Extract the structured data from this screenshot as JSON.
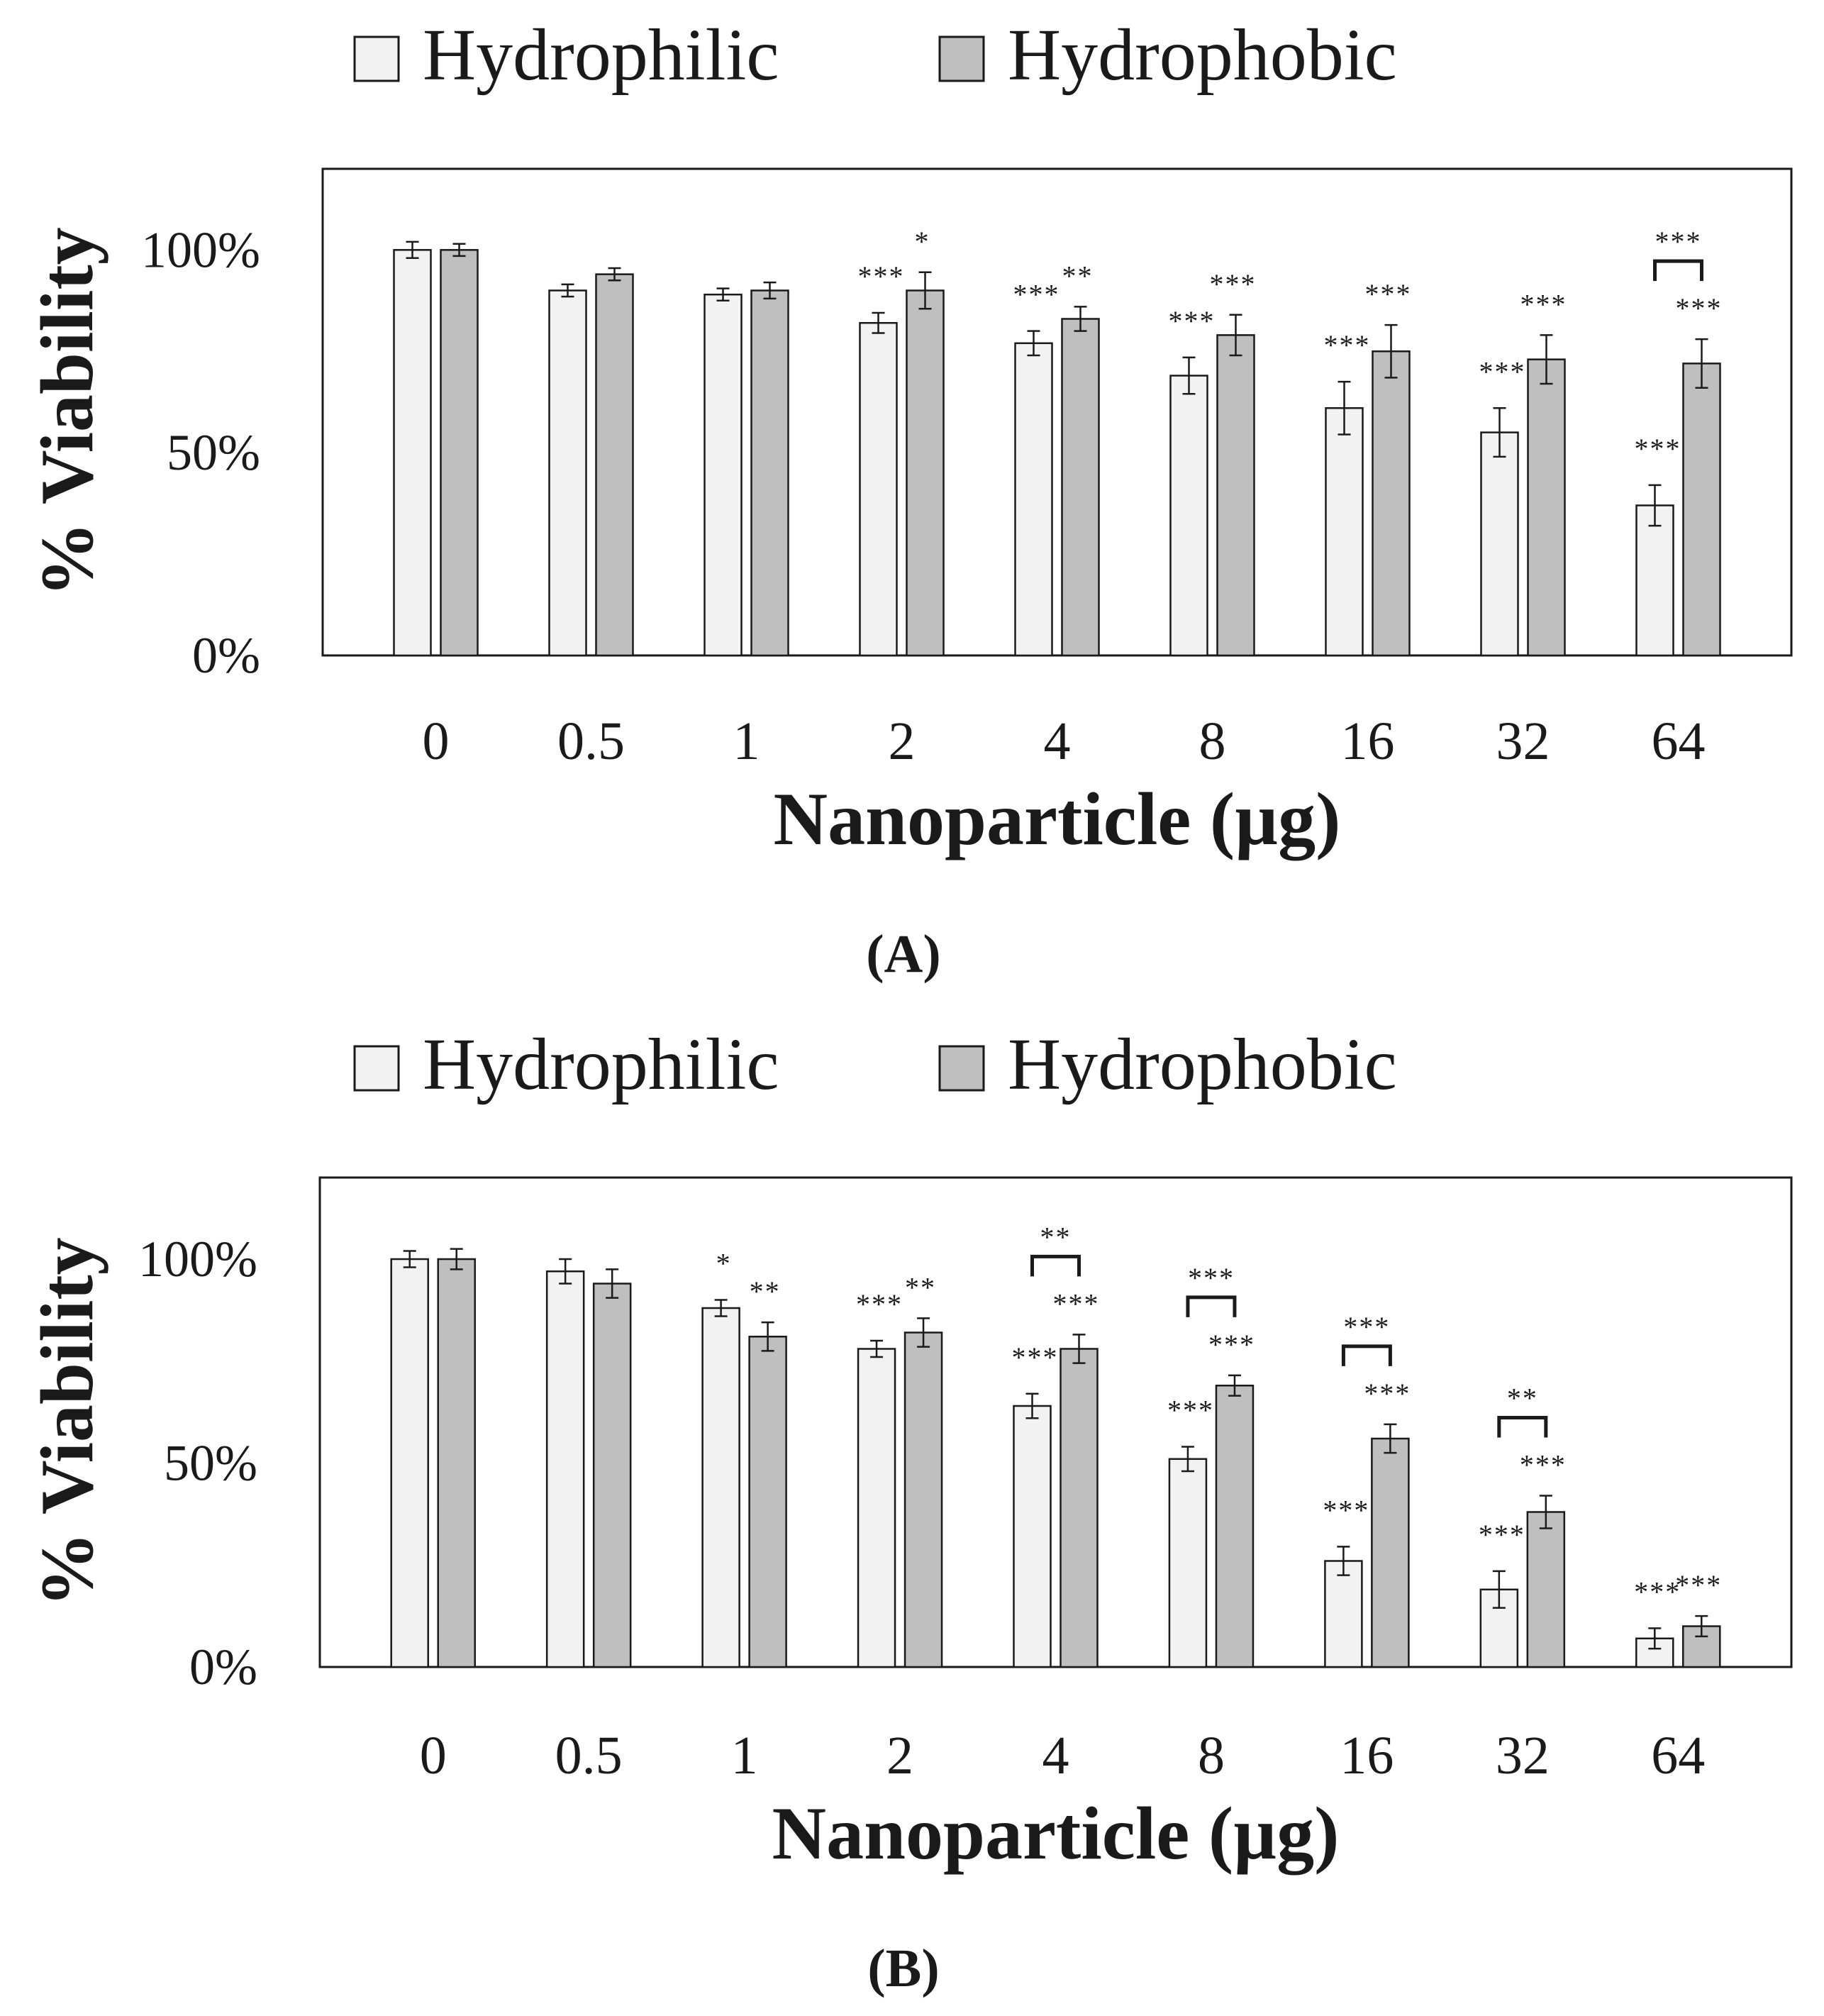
{
  "colors": {
    "hydrophilic": "#f2f2f2",
    "hydrophobic": "#bfbfbf",
    "stroke": "#1a1a1a",
    "background": "#ffffff"
  },
  "chart_data": [
    {
      "type": "bar",
      "panel_label": "A",
      "caption": "(A)",
      "legend": [
        "Hydrophilic",
        "Hydrophobic"
      ],
      "xlabel": "Nanoparticle (µg)",
      "ylabel": "% Viability",
      "yticks": [
        "0%",
        "50%",
        "100%"
      ],
      "ylim": [
        0,
        120
      ],
      "categories": [
        "0",
        "0.5",
        "1",
        "2",
        "4",
        "8",
        "16",
        "32",
        "64"
      ],
      "series": [
        {
          "name": "Hydrophilic",
          "values": [
            100,
            90,
            89,
            82,
            77,
            69,
            61,
            55,
            37
          ],
          "errors": [
            2,
            1.5,
            1.5,
            2.5,
            3,
            4.5,
            6.5,
            6,
            5
          ],
          "significance": [
            "",
            "",
            "",
            "***",
            "***",
            "***",
            "***",
            "***",
            "***"
          ]
        },
        {
          "name": "Hydrophobic",
          "values": [
            100,
            94,
            90,
            90,
            83,
            79,
            75,
            73,
            72
          ],
          "errors": [
            1.5,
            1.5,
            2,
            4.5,
            3,
            5,
            6.5,
            6,
            6
          ],
          "significance": [
            "",
            "",
            "",
            "*",
            "**",
            "***",
            "***",
            "***",
            "***"
          ]
        }
      ],
      "brackets": [
        {
          "category_index": 8,
          "label": "***"
        }
      ]
    },
    {
      "type": "bar",
      "panel_label": "B",
      "caption": "(B)",
      "legend": [
        "Hydrophilic",
        "Hydrophobic"
      ],
      "xlabel": "Nanoparticle (µg)",
      "ylabel": "% Viability",
      "yticks": [
        "0%",
        "50%",
        "100%"
      ],
      "ylim": [
        0,
        120
      ],
      "categories": [
        "0",
        "0.5",
        "1",
        "2",
        "4",
        "8",
        "16",
        "32",
        "64"
      ],
      "series": [
        {
          "name": "Hydrophilic",
          "values": [
            100,
            97,
            88,
            78,
            64,
            51,
            26,
            19,
            7
          ],
          "errors": [
            2,
            3,
            2,
            2,
            3,
            3,
            3.5,
            4.5,
            2.5
          ],
          "significance": [
            "",
            "",
            "*",
            "***",
            "***",
            "***",
            "***",
            "***",
            "***"
          ]
        },
        {
          "name": "Hydrophobic",
          "values": [
            100,
            94,
            81,
            82,
            78,
            69,
            56,
            38,
            10
          ],
          "errors": [
            2.5,
            3.5,
            3.5,
            3.5,
            3.5,
            2.5,
            3.5,
            4,
            2.5
          ],
          "significance": [
            "",
            "",
            "**",
            "**",
            "***",
            "***",
            "***",
            "***",
            "***"
          ]
        }
      ],
      "brackets": [
        {
          "category_index": 4,
          "label": "**"
        },
        {
          "category_index": 5,
          "label": "***"
        },
        {
          "category_index": 6,
          "label": "***"
        },
        {
          "category_index": 7,
          "label": "**"
        }
      ]
    }
  ]
}
